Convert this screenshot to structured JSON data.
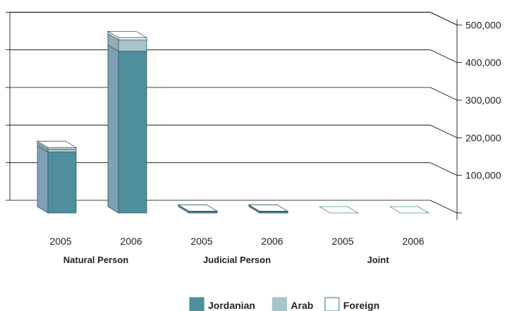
{
  "chart_data": {
    "type": "bar",
    "stacked": true,
    "three_d": true,
    "title": "",
    "xlabel": "",
    "ylabel": "",
    "ylim": [
      0,
      500000
    ],
    "y_ticks": [
      100000,
      200000,
      300000,
      400000,
      500000
    ],
    "y_tick_labels": [
      "100,000",
      "200,000",
      "300,000",
      "400,000",
      "500,000"
    ],
    "y_axis_position": "right",
    "grid": true,
    "legend_position": "bottom",
    "groups": [
      "Natural Person",
      "Judicial Person",
      "Joint"
    ],
    "categories": [
      "2005",
      "2006",
      "2005",
      "2006",
      "2005",
      "2006"
    ],
    "category_group": [
      0,
      0,
      1,
      1,
      2,
      2
    ],
    "series": [
      {
        "name": "Jordanian",
        "color": "#4f8e9c",
        "values": [
          162000,
          430000,
          4000,
          4000,
          0,
          0
        ]
      },
      {
        "name": "Arab",
        "color": "#a8c4cc",
        "values": [
          8000,
          30000,
          500,
          500,
          0,
          0
        ]
      },
      {
        "name": "Foreign",
        "color": "#ffffff",
        "values": [
          4000,
          6000,
          300,
          300,
          0,
          0
        ]
      }
    ]
  }
}
